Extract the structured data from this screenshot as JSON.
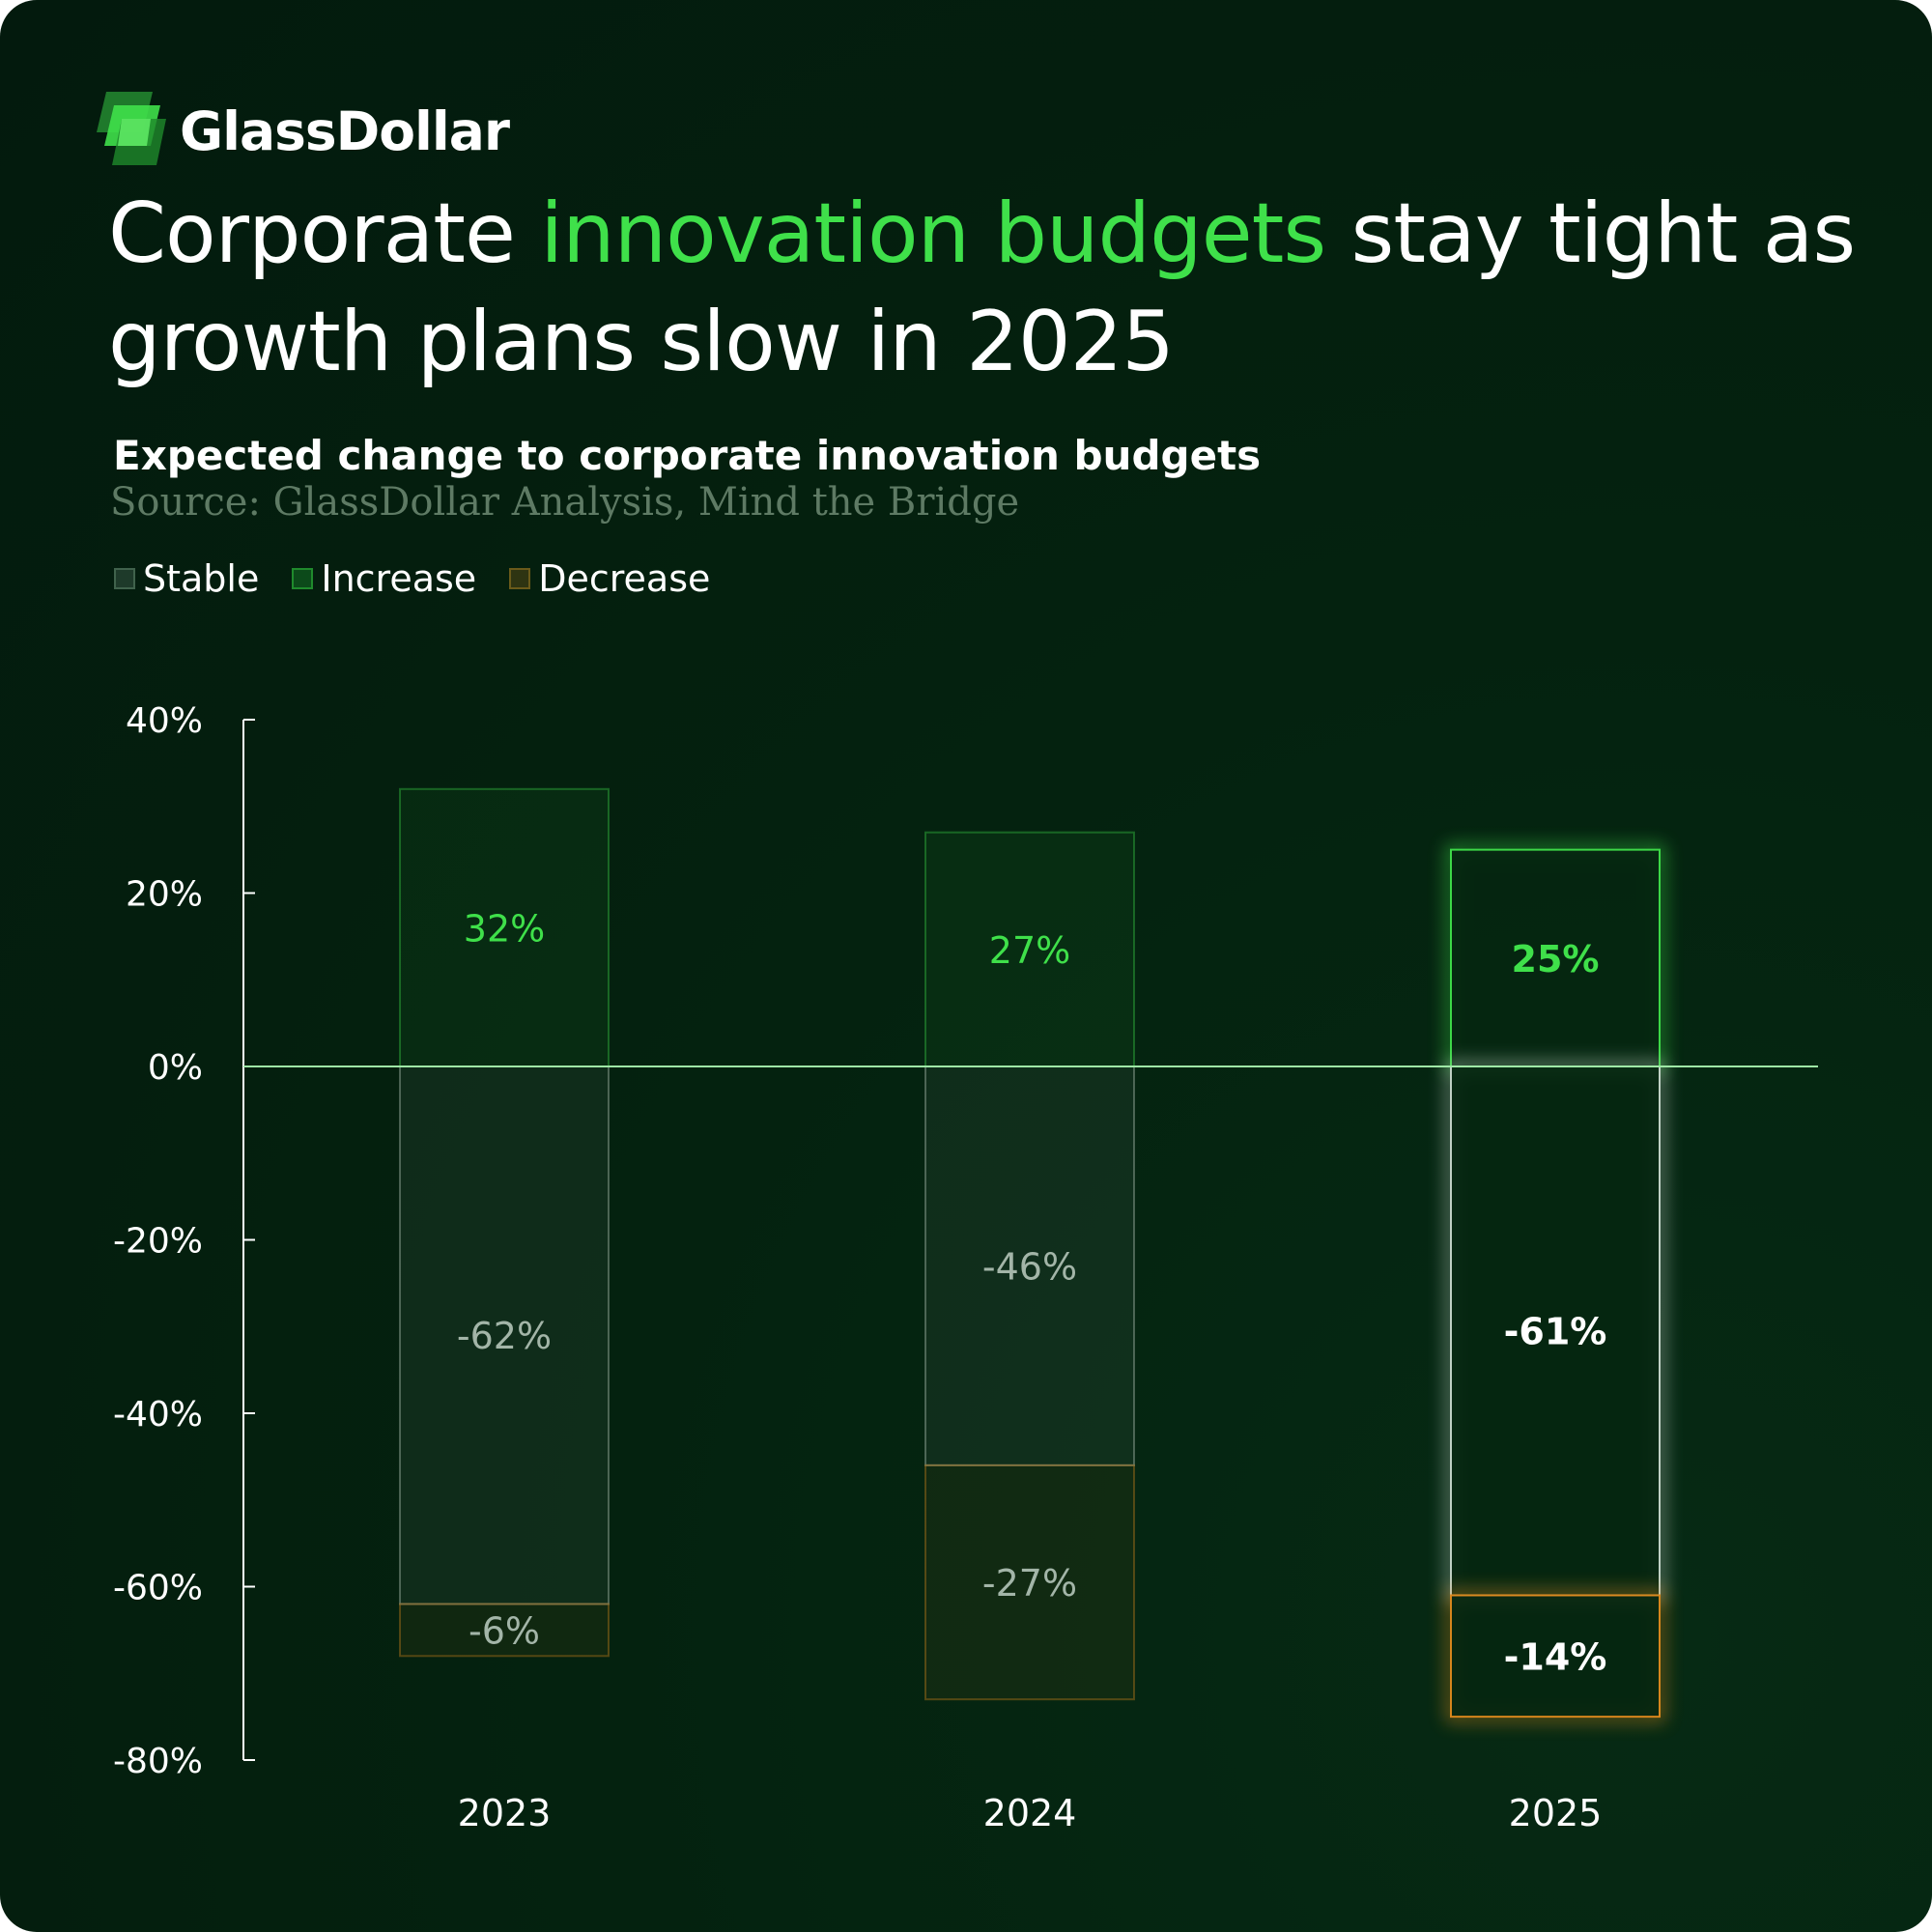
{
  "brand": {
    "name": "GlassDollar"
  },
  "headline": {
    "part1": "Corporate ",
    "highlight": "innovation budgets",
    "part2": " stay tight as growth plans slow in 2025"
  },
  "subtitle": "Expected change to corporate innovation budgets",
  "source": "Source: GlassDollar Analysis, Mind the Bridge",
  "colors": {
    "background": "#03200f",
    "increase": "#3fe04a",
    "stable": "#c8d8cc",
    "decrease": "#e08a1e",
    "zero_line": "#9fe8a6",
    "axis_text": "#ffffff"
  },
  "legend": [
    {
      "label": "Stable",
      "key": "stable"
    },
    {
      "label": "Increase",
      "key": "increase"
    },
    {
      "label": "Decrease",
      "key": "decrease"
    }
  ],
  "chart_data": {
    "type": "bar",
    "stacked": true,
    "categories": [
      "2023",
      "2024",
      "2025"
    ],
    "series": [
      {
        "name": "Increase",
        "values": [
          32,
          27,
          25
        ],
        "labels": [
          "32%",
          "27%",
          "25%"
        ]
      },
      {
        "name": "Stable",
        "values": [
          -62,
          -46,
          -61
        ],
        "labels": [
          "-62%",
          "-46%",
          "-61%"
        ]
      },
      {
        "name": "Decrease",
        "values": [
          -6,
          -27,
          -14
        ],
        "labels": [
          "-6%",
          "-27%",
          "-14%"
        ]
      }
    ],
    "highlight_category": "2025",
    "ylim": [
      -80,
      40
    ],
    "yticks": [
      40,
      20,
      0,
      -20,
      -40,
      -60,
      -80
    ],
    "ytick_labels": [
      "40%",
      "20%",
      "0%",
      "-20%",
      "-40%",
      "-60%",
      "-80%"
    ],
    "legend_position": "top-left",
    "grid": false
  }
}
